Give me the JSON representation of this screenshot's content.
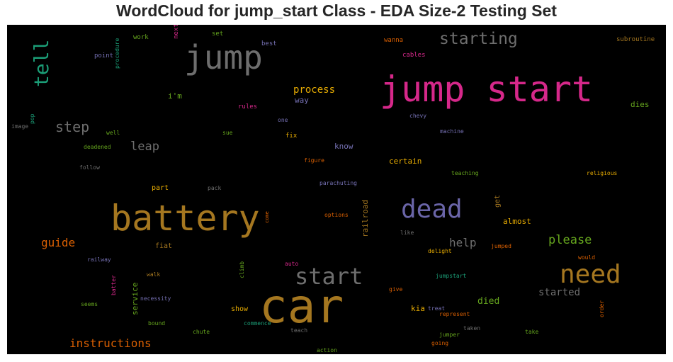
{
  "chart_data": {
    "type": "wordcloud",
    "title": "WordCloud for jump_start Class - EDA Size-2 Testing Set",
    "background": "#000000",
    "words": [
      {
        "text": "jump start",
        "color": "#d6288a"
      },
      {
        "text": "car",
        "color": "#a57720"
      },
      {
        "text": "battery",
        "color": "#a57720"
      },
      {
        "text": "jump",
        "color": "#6e6e6e"
      },
      {
        "text": "dead",
        "color": "#6a65a8"
      },
      {
        "text": "need",
        "color": "#a57720"
      },
      {
        "text": "start",
        "color": "#6e6e6e"
      },
      {
        "text": "starting",
        "color": "#6e6e6e"
      },
      {
        "text": "tell",
        "color": "#1b9e77"
      },
      {
        "text": "step",
        "color": "#6e6e6e"
      },
      {
        "text": "leap",
        "color": "#6e6e6e"
      },
      {
        "text": "please",
        "color": "#66a61e"
      },
      {
        "text": "guide",
        "color": "#d95f02"
      },
      {
        "text": "instructions",
        "color": "#d95f02"
      },
      {
        "text": "help",
        "color": "#6e6e6e"
      },
      {
        "text": "process",
        "color": "#e6ab02"
      },
      {
        "text": "started",
        "color": "#6e6e6e"
      },
      {
        "text": "died",
        "color": "#66a61e"
      },
      {
        "text": "almost",
        "color": "#e6ab02"
      },
      {
        "text": "certain",
        "color": "#e6ab02"
      },
      {
        "text": "know",
        "color": "#7570b3"
      },
      {
        "text": "way",
        "color": "#7570b3"
      },
      {
        "text": "i'm",
        "color": "#66a61e"
      },
      {
        "text": "dies",
        "color": "#66a61e"
      },
      {
        "text": "part",
        "color": "#e6ab02"
      },
      {
        "text": "fiat",
        "color": "#a57720"
      },
      {
        "text": "show",
        "color": "#e6ab02"
      },
      {
        "text": "kia",
        "color": "#e6ab02"
      },
      {
        "text": "railroad",
        "color": "#a57720"
      },
      {
        "text": "service",
        "color": "#66a61e"
      },
      {
        "text": "get",
        "color": "#a57720"
      },
      {
        "text": "work",
        "color": "#66a61e"
      },
      {
        "text": "next",
        "color": "#d6288a"
      },
      {
        "text": "set",
        "color": "#66a61e"
      },
      {
        "text": "best",
        "color": "#7570b3"
      },
      {
        "text": "wanna",
        "color": "#d95f02"
      },
      {
        "text": "subroutine",
        "color": "#a57720"
      },
      {
        "text": "point",
        "color": "#7570b3"
      },
      {
        "text": "cables",
        "color": "#d6288a"
      },
      {
        "text": "procedure",
        "color": "#1b9e77"
      },
      {
        "text": "rules",
        "color": "#d6288a"
      },
      {
        "text": "one",
        "color": "#7570b3"
      },
      {
        "text": "chevy",
        "color": "#7570b3"
      },
      {
        "text": "pop",
        "color": "#1b9e77"
      },
      {
        "text": "image",
        "color": "#6e6e6e"
      },
      {
        "text": "well",
        "color": "#66a61e"
      },
      {
        "text": "sue",
        "color": "#66a61e"
      },
      {
        "text": "fix",
        "color": "#e6ab02"
      },
      {
        "text": "machine",
        "color": "#7570b3"
      },
      {
        "text": "deadened",
        "color": "#66a61e"
      },
      {
        "text": "figure",
        "color": "#d95f02"
      },
      {
        "text": "follow",
        "color": "#6e6e6e"
      },
      {
        "text": "teaching",
        "color": "#66a61e"
      },
      {
        "text": "religious",
        "color": "#e6ab02"
      },
      {
        "text": "pack",
        "color": "#6e6e6e"
      },
      {
        "text": "parachuting",
        "color": "#7570b3"
      },
      {
        "text": "options",
        "color": "#d95f02"
      },
      {
        "text": "come",
        "color": "#d95f02"
      },
      {
        "text": "like",
        "color": "#6e6e6e"
      },
      {
        "text": "jumped",
        "color": "#d95f02"
      },
      {
        "text": "delight",
        "color": "#e6ab02"
      },
      {
        "text": "would",
        "color": "#d95f02"
      },
      {
        "text": "railway",
        "color": "#7570b3"
      },
      {
        "text": "auto",
        "color": "#d6288a"
      },
      {
        "text": "walk",
        "color": "#a57720"
      },
      {
        "text": "jumpstart",
        "color": "#1b9e77"
      },
      {
        "text": "climb",
        "color": "#66a61e"
      },
      {
        "text": "give",
        "color": "#d95f02"
      },
      {
        "text": "necessity",
        "color": "#7570b3"
      },
      {
        "text": "seems",
        "color": "#66a61e"
      },
      {
        "text": "treat",
        "color": "#7570b3"
      },
      {
        "text": "represent",
        "color": "#d95f02"
      },
      {
        "text": "batter",
        "color": "#d6288a"
      },
      {
        "text": "bound",
        "color": "#66a61e"
      },
      {
        "text": "commence",
        "color": "#1b9e77"
      },
      {
        "text": "teach",
        "color": "#6e6e6e"
      },
      {
        "text": "taken",
        "color": "#6e6e6e"
      },
      {
        "text": "take",
        "color": "#66a61e"
      },
      {
        "text": "order",
        "color": "#d95f02"
      },
      {
        "text": "chute",
        "color": "#66a61e"
      },
      {
        "text": "jumper",
        "color": "#66a61e"
      },
      {
        "text": "going",
        "color": "#d95f02"
      },
      {
        "text": "action",
        "color": "#66a61e"
      }
    ]
  }
}
